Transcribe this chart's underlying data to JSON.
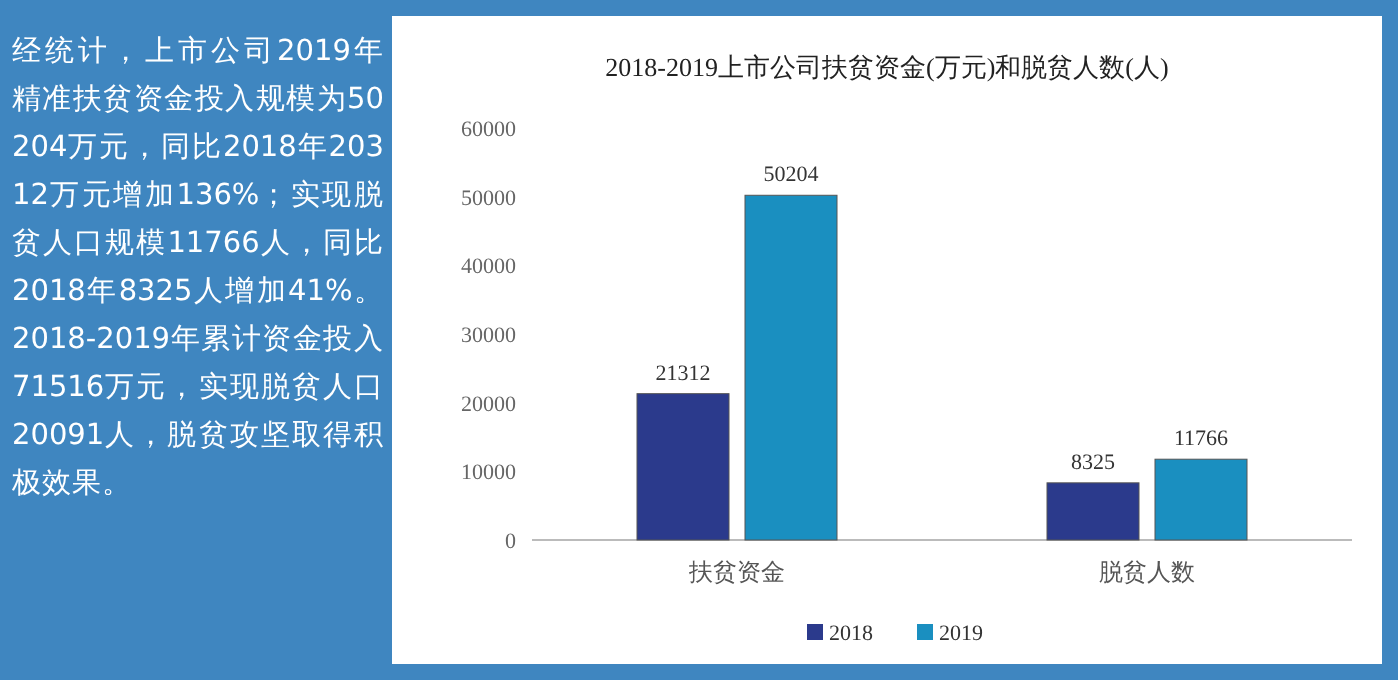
{
  "chart_data": {
    "type": "bar",
    "title": "2018-2019上市公司扶贫资金(万元)和脱贫人数(人)",
    "categories": [
      "扶贫资金",
      "脱贫人数"
    ],
    "series": [
      {
        "name": "2018",
        "color": "#2b3a8c",
        "values": [
          21312,
          8325
        ]
      },
      {
        "name": "2019",
        "color": "#1a8fc0",
        "values": [
          50204,
          11766
        ]
      }
    ],
    "ylim": [
      0,
      60000
    ],
    "yticks": [
      0,
      10000,
      20000,
      30000,
      40000,
      50000,
      60000
    ],
    "data_labels": true,
    "legend": "bottom",
    "grid": false,
    "annotations": [
      "经统计，上市公司2019年精准扶贫资金投入规模为50204万元，同比2018年20312万元增加136%；实现脱贫人口规模11766人，同比2018年8325人增加41%。2018-2019年累计资金投入71516万元，实现脱贫人口20091人，脱贫攻坚取得积极效果。"
    ]
  }
}
